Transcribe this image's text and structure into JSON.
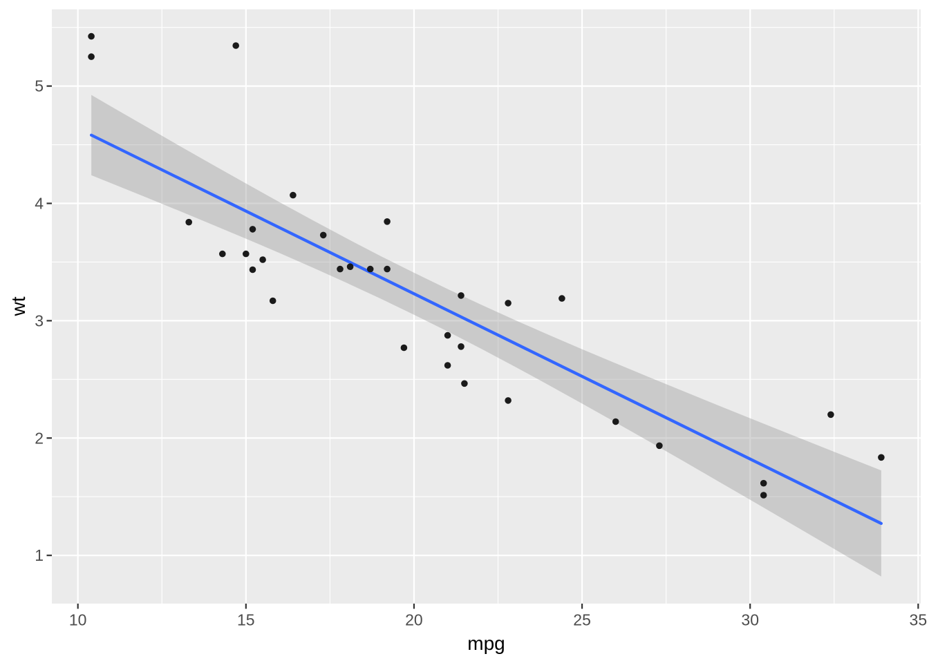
{
  "chart_data": {
    "type": "scatter",
    "title": "",
    "xlabel": "mpg",
    "ylabel": "wt",
    "xlim": [
      9.225,
      35.075
    ],
    "ylim": [
      0.589,
      5.654
    ],
    "x_ticks": [
      10,
      15,
      20,
      25,
      30,
      35
    ],
    "y_ticks": [
      1,
      2,
      3,
      4,
      5
    ],
    "x_minor_ticks": [
      12.5,
      17.5,
      22.5,
      27.5,
      32.5
    ],
    "y_minor_ticks": [
      1.5,
      2.5,
      3.5,
      4.5,
      5.5
    ],
    "grid": "on",
    "legend": "none",
    "series": [
      {
        "name": "observations",
        "type": "scatter",
        "points": [
          [
            21.0,
            2.62
          ],
          [
            21.0,
            2.875
          ],
          [
            22.8,
            2.32
          ],
          [
            21.4,
            3.215
          ],
          [
            18.7,
            3.44
          ],
          [
            18.1,
            3.46
          ],
          [
            14.3,
            3.57
          ],
          [
            24.4,
            3.19
          ],
          [
            22.8,
            3.15
          ],
          [
            19.2,
            3.44
          ],
          [
            17.8,
            3.44
          ],
          [
            16.4,
            4.07
          ],
          [
            17.3,
            3.73
          ],
          [
            15.2,
            3.78
          ],
          [
            10.4,
            5.25
          ],
          [
            10.4,
            5.424
          ],
          [
            14.7,
            5.345
          ],
          [
            32.4,
            2.2
          ],
          [
            30.4,
            1.615
          ],
          [
            33.9,
            1.835
          ],
          [
            21.5,
            2.465
          ],
          [
            15.5,
            3.52
          ],
          [
            15.2,
            3.435
          ],
          [
            13.3,
            3.84
          ],
          [
            19.2,
            3.845
          ],
          [
            27.3,
            1.935
          ],
          [
            26.0,
            2.14
          ],
          [
            30.4,
            1.513
          ],
          [
            15.8,
            3.17
          ],
          [
            19.7,
            2.77
          ],
          [
            15.0,
            3.57
          ],
          [
            21.4,
            2.78
          ]
        ]
      },
      {
        "name": "lm-fit-line",
        "type": "line",
        "points": [
          [
            10.4,
            4.582
          ],
          [
            33.9,
            1.272
          ]
        ]
      },
      {
        "name": "lm-confidence-band",
        "type": "area",
        "points_format": [
          "x",
          "lower",
          "upper"
        ],
        "points": [
          [
            10.4,
            4.24,
            4.924
          ],
          [
            11,
            4.171,
            4.824
          ],
          [
            12,
            4.055,
            4.659
          ],
          [
            13,
            3.938,
            4.494
          ],
          [
            14,
            3.819,
            4.331
          ],
          [
            15,
            3.699,
            4.17
          ],
          [
            16,
            3.577,
            4.01
          ],
          [
            17,
            3.451,
            3.854
          ],
          [
            18,
            3.322,
            3.701
          ],
          [
            19,
            3.189,
            3.552
          ],
          [
            20,
            3.051,
            3.409
          ],
          [
            21,
            2.909,
            3.27
          ],
          [
            22,
            2.761,
            3.136
          ],
          [
            23,
            2.609,
            3.006
          ],
          [
            24,
            2.453,
            2.88
          ],
          [
            25,
            2.294,
            2.757
          ],
          [
            26,
            2.133,
            2.637
          ],
          [
            27,
            1.97,
            2.518
          ],
          [
            28,
            1.806,
            2.401
          ],
          [
            29,
            1.64,
            2.284
          ],
          [
            30,
            1.474,
            2.169
          ],
          [
            31,
            1.307,
            2.054
          ],
          [
            32,
            1.139,
            1.94
          ],
          [
            33,
            0.971,
            1.826
          ],
          [
            33.9,
            0.82,
            1.724
          ]
        ]
      }
    ]
  },
  "style": {
    "figure_bg": "#FFFFFF",
    "panel_bg": "#EBEBEB",
    "grid_color": "#FFFFFF",
    "point_color": "#1A1A1A",
    "line_color": "#3366FF",
    "band_color": "rgba(153,153,153,0.4)",
    "tick_color": "#333333",
    "tick_label_color": "#4D4D4D",
    "axis_title_color": "#000000"
  }
}
